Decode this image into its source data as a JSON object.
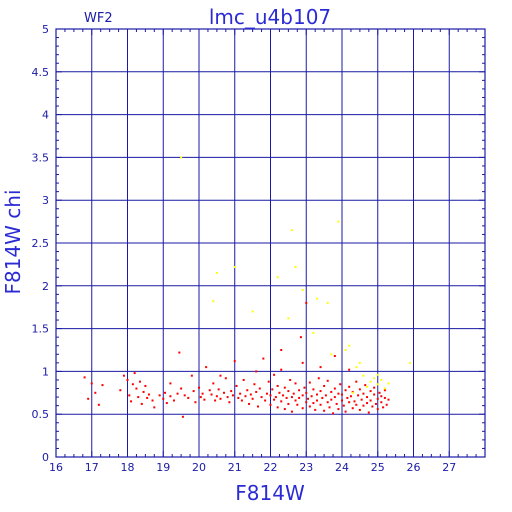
{
  "colors": {
    "background": "#ffffff",
    "frame": "#1a1aa6",
    "grid": "#1a1aa6",
    "text": "#2b2bd6",
    "series_main": "#ff0000",
    "series_flagged": "#ffff00"
  },
  "chart_data": {
    "type": "scatter",
    "title": "lmc_u4b107",
    "subtitle": "WF2",
    "xlabel": "F814W",
    "ylabel": "F814W chi",
    "xlim": [
      16,
      28
    ],
    "ylim": [
      0,
      5
    ],
    "xticks": [
      "16",
      "17",
      "18",
      "19",
      "20",
      "21",
      "22",
      "23",
      "24",
      "25",
      "26",
      "27"
    ],
    "yticks": [
      "0",
      "0.5",
      "1",
      "1.5",
      "2",
      "2.5",
      "3",
      "3.5",
      "4",
      "4.5",
      "5"
    ],
    "grid": true,
    "series": [
      {
        "color": "#ff0000",
        "points": [
          [
            16.8,
            0.93
          ],
          [
            16.9,
            0.68
          ],
          [
            17.0,
            0.86
          ],
          [
            17.1,
            0.75
          ],
          [
            17.2,
            0.61
          ],
          [
            17.3,
            0.84
          ],
          [
            17.8,
            0.78
          ],
          [
            17.9,
            0.95
          ],
          [
            18.0,
            0.9
          ],
          [
            18.05,
            0.72
          ],
          [
            18.1,
            0.65
          ],
          [
            18.15,
            0.85
          ],
          [
            18.2,
            0.98
          ],
          [
            18.25,
            0.8
          ],
          [
            18.3,
            0.7
          ],
          [
            18.35,
            0.88
          ],
          [
            18.4,
            0.62
          ],
          [
            18.45,
            0.76
          ],
          [
            18.5,
            0.83
          ],
          [
            18.55,
            0.69
          ],
          [
            18.6,
            0.73
          ],
          [
            18.7,
            0.66
          ],
          [
            18.75,
            0.58
          ],
          [
            18.9,
            0.72
          ],
          [
            19.0,
            0.68
          ],
          [
            19.05,
            0.75
          ],
          [
            19.1,
            0.63
          ],
          [
            19.2,
            0.71
          ],
          [
            19.3,
            0.66
          ],
          [
            19.4,
            0.74
          ],
          [
            19.45,
            1.22
          ],
          [
            19.5,
            0.8
          ],
          [
            19.55,
            0.47
          ],
          [
            19.6,
            0.72
          ],
          [
            19.7,
            0.69
          ],
          [
            19.8,
            0.95
          ],
          [
            19.85,
            0.77
          ],
          [
            19.9,
            0.64
          ],
          [
            20.0,
            0.81
          ],
          [
            20.05,
            0.7
          ],
          [
            20.1,
            0.74
          ],
          [
            20.15,
            0.67
          ],
          [
            20.2,
            1.05
          ],
          [
            20.3,
            0.78
          ],
          [
            20.35,
            0.73
          ],
          [
            20.4,
            0.86
          ],
          [
            20.45,
            0.66
          ],
          [
            20.5,
            0.71
          ],
          [
            20.55,
            0.79
          ],
          [
            20.6,
            0.68
          ],
          [
            20.7,
            0.75
          ],
          [
            20.75,
            0.92
          ],
          [
            20.8,
            0.7
          ],
          [
            20.85,
            0.64
          ],
          [
            20.9,
            0.77
          ],
          [
            20.95,
            0.72
          ],
          [
            21.0,
            1.12
          ],
          [
            21.05,
            0.83
          ],
          [
            21.1,
            0.69
          ],
          [
            21.15,
            0.74
          ],
          [
            21.2,
            0.66
          ],
          [
            21.25,
            0.9
          ],
          [
            21.3,
            0.71
          ],
          [
            21.35,
            0.78
          ],
          [
            21.4,
            0.62
          ],
          [
            21.45,
            0.73
          ],
          [
            21.5,
            0.68
          ],
          [
            21.55,
            0.85
          ],
          [
            21.6,
            0.76
          ],
          [
            21.65,
            0.59
          ],
          [
            21.7,
            0.8
          ],
          [
            21.75,
            0.7
          ],
          [
            21.8,
            1.15
          ],
          [
            21.85,
            0.66
          ],
          [
            21.9,
            0.74
          ],
          [
            21.95,
            0.88
          ],
          [
            22.0,
            0.72
          ],
          [
            22.0,
            0.61
          ],
          [
            22.05,
            0.79
          ],
          [
            22.1,
            0.67
          ],
          [
            22.1,
            0.96
          ],
          [
            22.15,
            0.7
          ],
          [
            22.2,
            0.58
          ],
          [
            22.2,
            0.83
          ],
          [
            22.25,
            0.75
          ],
          [
            22.3,
            0.65
          ],
          [
            22.3,
            1.02
          ],
          [
            22.35,
            0.72
          ],
          [
            22.4,
            0.56
          ],
          [
            22.4,
            0.81
          ],
          [
            22.45,
            0.69
          ],
          [
            22.5,
            0.77
          ],
          [
            22.5,
            0.62
          ],
          [
            22.55,
            0.9
          ],
          [
            22.6,
            0.7
          ],
          [
            22.6,
            0.53
          ],
          [
            22.65,
            0.74
          ],
          [
            22.7,
            0.66
          ],
          [
            22.7,
            0.86
          ],
          [
            22.75,
            0.61
          ],
          [
            22.8,
            0.78
          ],
          [
            22.8,
            0.69
          ],
          [
            22.85,
            1.4
          ],
          [
            22.9,
            0.72
          ],
          [
            22.9,
            0.57
          ],
          [
            22.95,
            0.81
          ],
          [
            23.0,
            0.64
          ],
          [
            23.0,
            0.75
          ],
          [
            23.0,
            1.8
          ],
          [
            23.05,
            0.68
          ],
          [
            23.1,
            0.59
          ],
          [
            23.1,
            0.87
          ],
          [
            23.15,
            0.71
          ],
          [
            23.2,
            0.63
          ],
          [
            23.2,
            0.79
          ],
          [
            23.25,
            0.55
          ],
          [
            23.3,
            0.73
          ],
          [
            23.3,
            0.66
          ],
          [
            23.35,
            0.92
          ],
          [
            23.4,
            0.61
          ],
          [
            23.4,
            0.77
          ],
          [
            23.45,
            0.69
          ],
          [
            23.5,
            0.54
          ],
          [
            23.5,
            0.83
          ],
          [
            23.55,
            0.72
          ],
          [
            23.6,
            0.64
          ],
          [
            23.6,
            0.89
          ],
          [
            23.65,
            0.58
          ],
          [
            23.7,
            0.76
          ],
          [
            23.7,
            0.67
          ],
          [
            23.75,
            0.51
          ],
          [
            23.8,
            0.8
          ],
          [
            23.8,
            0.7
          ],
          [
            23.85,
            0.62
          ],
          [
            23.9,
            0.74
          ],
          [
            23.9,
            0.56
          ],
          [
            23.95,
            0.85
          ],
          [
            24.0,
            0.66
          ],
          [
            24.0,
            0.73
          ],
          [
            24.05,
            0.6
          ],
          [
            24.1,
            0.78
          ],
          [
            24.1,
            0.53
          ],
          [
            24.15,
            0.69
          ],
          [
            24.2,
            0.82
          ],
          [
            24.2,
            0.64
          ],
          [
            24.25,
            0.71
          ],
          [
            24.3,
            0.57
          ],
          [
            24.3,
            0.76
          ],
          [
            24.35,
            0.65
          ],
          [
            24.4,
            0.88
          ],
          [
            24.4,
            0.61
          ],
          [
            24.45,
            0.72
          ],
          [
            24.5,
            0.55
          ],
          [
            24.5,
            0.79
          ],
          [
            24.55,
            0.67
          ],
          [
            24.6,
            0.6
          ],
          [
            24.6,
            0.74
          ],
          [
            24.65,
            0.84
          ],
          [
            24.7,
            0.63
          ],
          [
            24.7,
            0.7
          ],
          [
            24.75,
            0.52
          ],
          [
            24.8,
            0.77
          ],
          [
            24.8,
            0.66
          ],
          [
            24.85,
            0.59
          ],
          [
            24.9,
            0.73
          ],
          [
            24.9,
            0.81
          ],
          [
            24.95,
            0.62
          ],
          [
            25.0,
            0.68
          ],
          [
            25.0,
            0.56
          ],
          [
            25.05,
            0.75
          ],
          [
            25.1,
            0.64
          ],
          [
            25.1,
            0.71
          ],
          [
            25.15,
            0.58
          ],
          [
            25.2,
            0.69
          ],
          [
            25.2,
            0.78
          ],
          [
            25.25,
            0.61
          ],
          [
            25.3,
            0.67
          ],
          [
            22.3,
            1.25
          ],
          [
            22.9,
            1.1
          ],
          [
            23.4,
            1.05
          ],
          [
            23.8,
            1.18
          ],
          [
            24.2,
            1.02
          ],
          [
            21.6,
            1.0
          ],
          [
            20.6,
            0.95
          ],
          [
            19.2,
            0.86
          ]
        ]
      },
      {
        "color": "#ffff00",
        "points": [
          [
            19.5,
            3.5
          ],
          [
            20.5,
            2.15
          ],
          [
            21.0,
            2.22
          ],
          [
            20.4,
            1.82
          ],
          [
            22.6,
            2.65
          ],
          [
            22.7,
            2.22
          ],
          [
            22.2,
            2.1
          ],
          [
            22.9,
            1.95
          ],
          [
            23.3,
            1.85
          ],
          [
            23.9,
            2.75
          ],
          [
            21.5,
            1.7
          ],
          [
            22.5,
            1.62
          ],
          [
            23.6,
            1.8
          ],
          [
            24.1,
            1.25
          ],
          [
            23.2,
            1.45
          ],
          [
            24.4,
            1.05
          ],
          [
            24.6,
            0.95
          ],
          [
            24.8,
            0.88
          ],
          [
            24.9,
            0.92
          ],
          [
            25.0,
            0.85
          ],
          [
            25.1,
            0.9
          ],
          [
            25.2,
            0.8
          ],
          [
            24.7,
            0.82
          ],
          [
            25.3,
            0.86
          ],
          [
            24.5,
            1.1
          ],
          [
            24.2,
            1.3
          ],
          [
            25.9,
            1.1
          ],
          [
            24.3,
            0.75
          ],
          [
            23.7,
            1.2
          ],
          [
            25.0,
            0.96
          ]
        ]
      }
    ]
  }
}
